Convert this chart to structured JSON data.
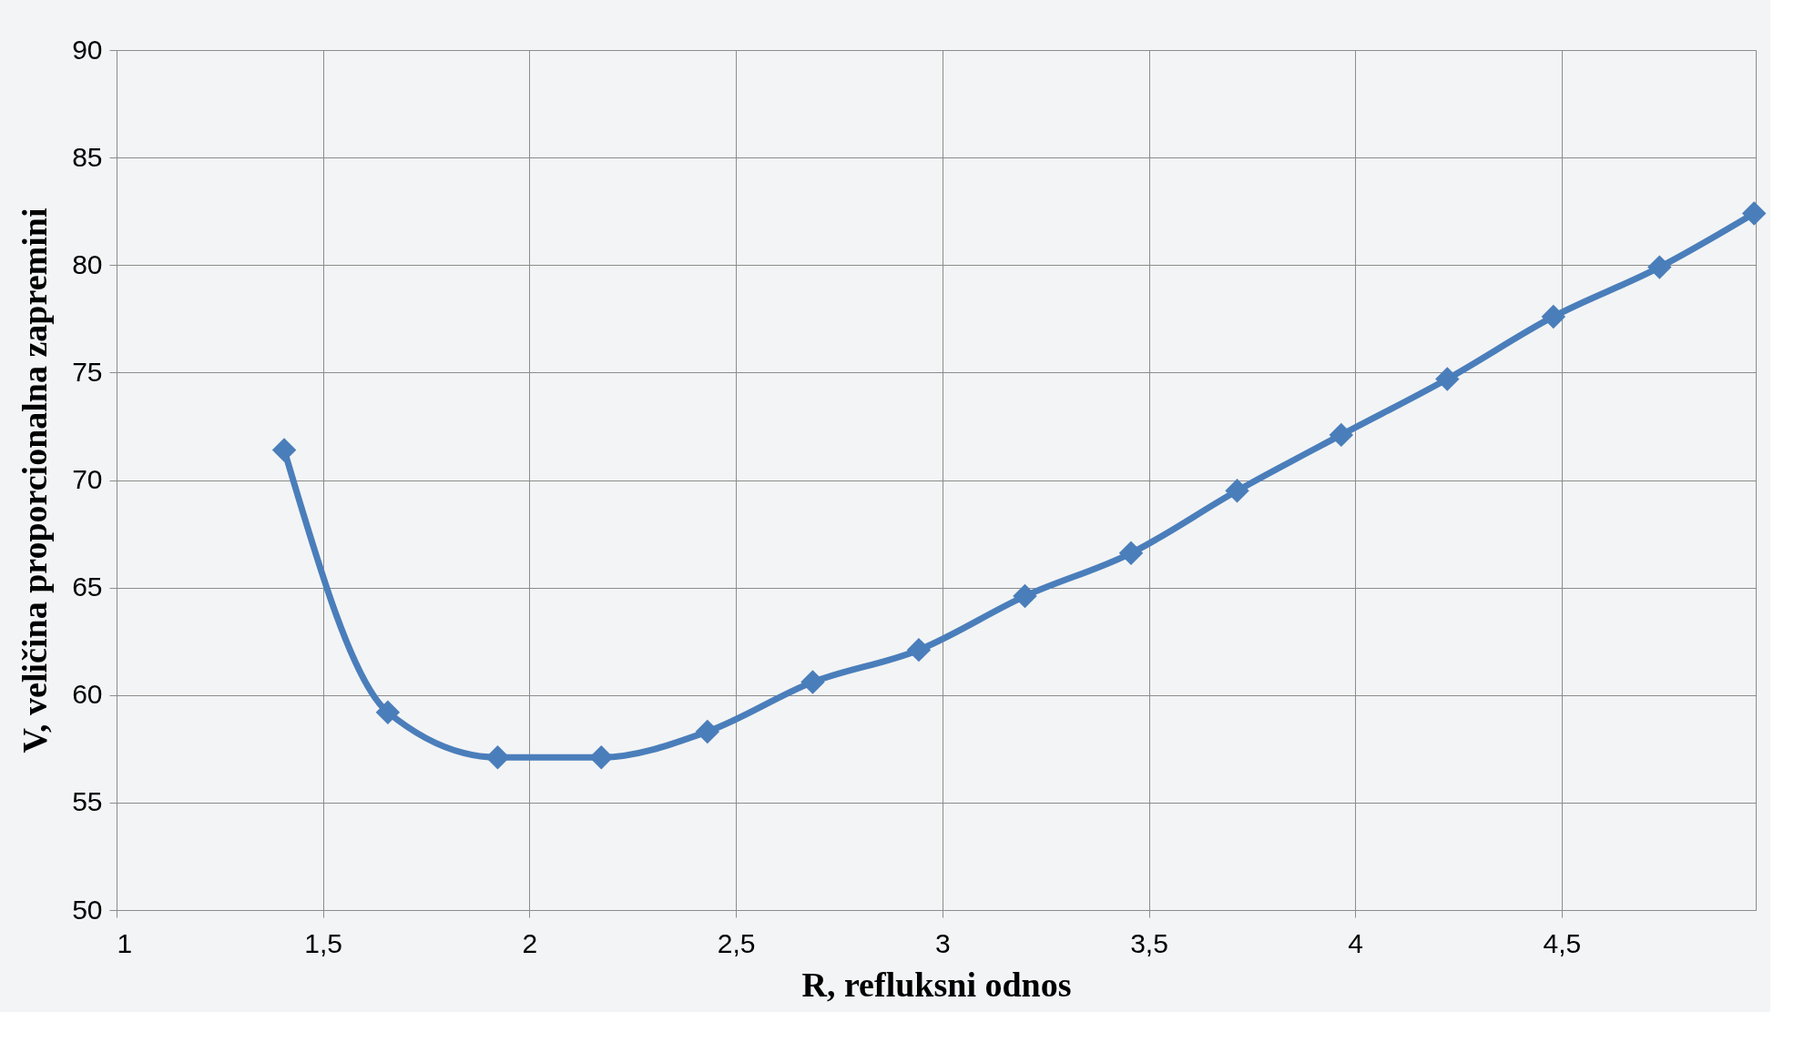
{
  "chart_data": {
    "type": "line",
    "xlabel": "R, refluksni odnos",
    "ylabel": "V, veličina proporcionalna zapremini",
    "x": [
      1.406,
      1.657,
      1.923,
      2.174,
      2.431,
      2.686,
      2.943,
      3.2,
      3.457,
      3.714,
      3.966,
      4.223,
      4.48,
      4.737,
      4.966
    ],
    "series": [
      {
        "color": "#4a7ebb",
        "values": [
          71.4,
          59.2,
          57.1,
          57.1,
          58.3,
          60.6,
          62.1,
          64.6,
          66.6,
          69.5,
          72.1,
          74.7,
          77.6,
          79.9,
          82.4
        ]
      }
    ],
    "xlim": [
      1,
      4.97
    ],
    "xticks": [
      {
        "value": 1,
        "label": "1"
      },
      {
        "value": 1.5,
        "label": "1,5"
      },
      {
        "value": 2,
        "label": "2"
      },
      {
        "value": 2.5,
        "label": "2,5"
      },
      {
        "value": 3,
        "label": "3"
      },
      {
        "value": 3.5,
        "label": "3,5"
      },
      {
        "value": 4,
        "label": "4"
      },
      {
        "value": 4.5,
        "label": "4,5"
      }
    ],
    "ylim": [
      50,
      90
    ],
    "yticks": [
      50,
      55,
      60,
      65,
      70,
      75,
      80,
      85,
      90
    ],
    "grid": true,
    "marker": "diamond",
    "line_style": "solid"
  }
}
